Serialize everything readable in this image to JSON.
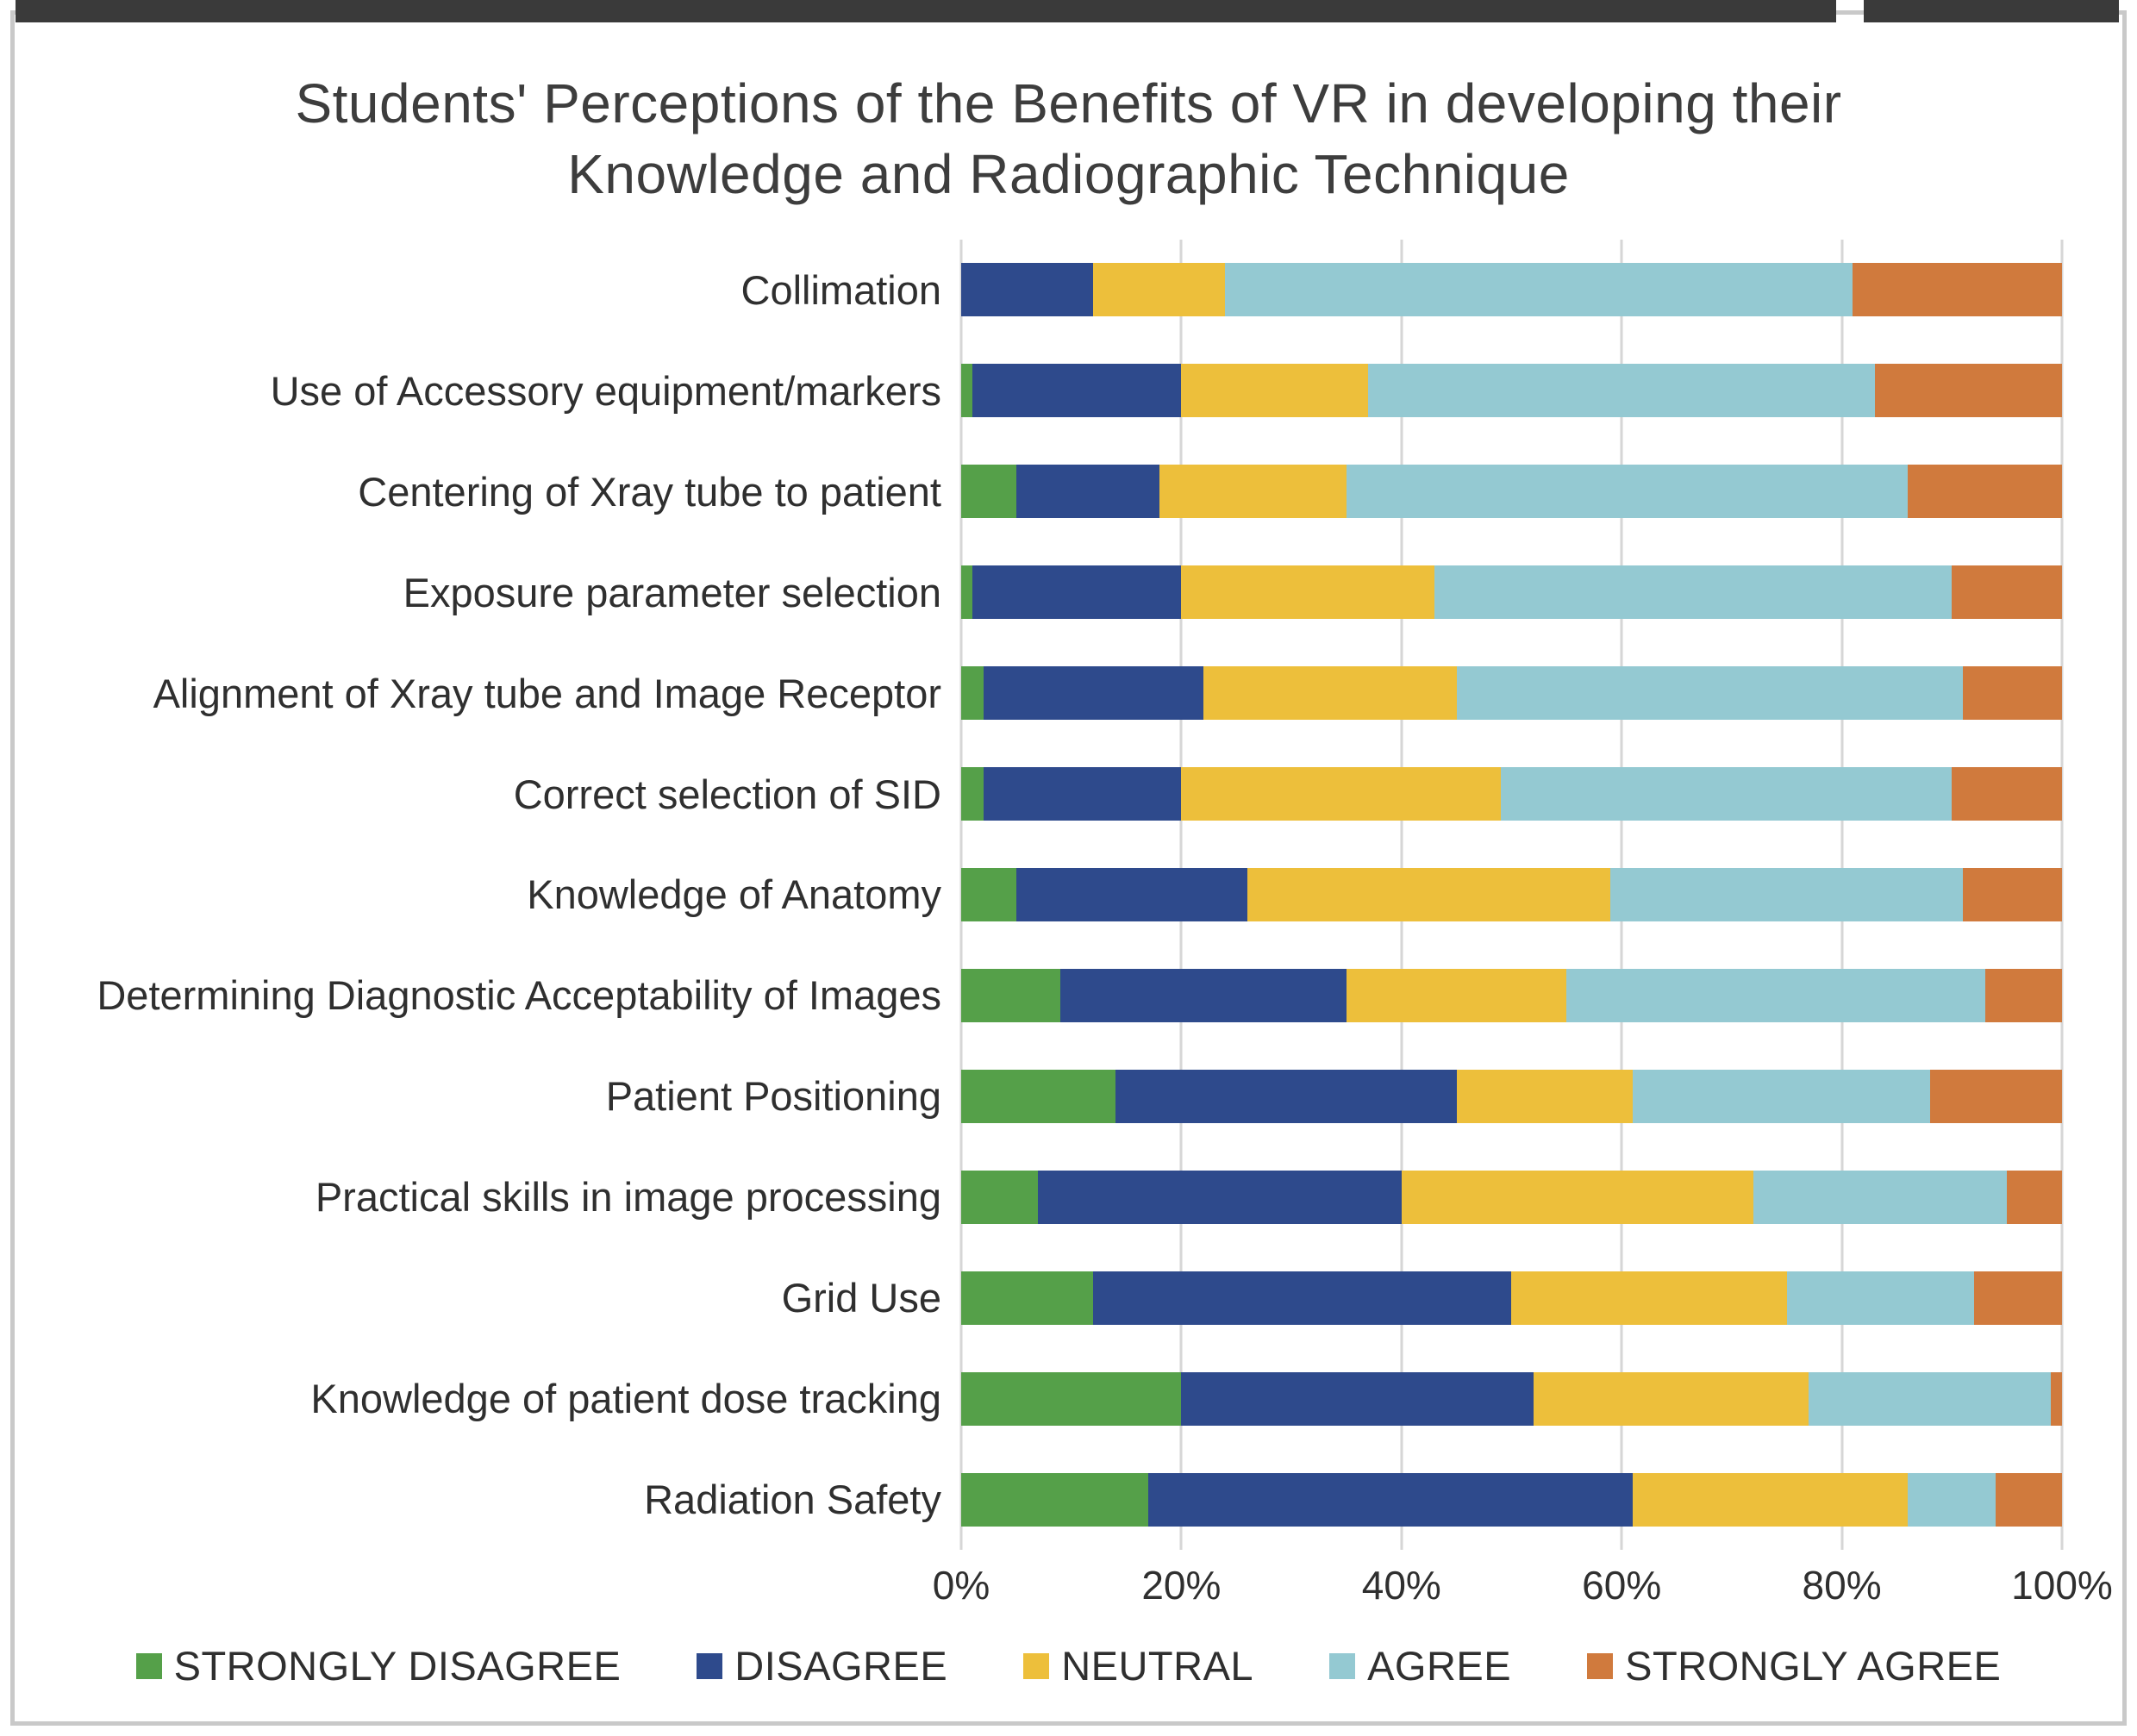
{
  "page": {
    "title_line1": "Students' Perceptions of the Benefits of VR in developing their",
    "title_line2": "Knowledge and Radiographic Technique"
  },
  "chart_data": {
    "type": "bar",
    "orientation": "horizontal",
    "stacked": true,
    "unit": "%",
    "title": "Students' Perceptions of the Benefits of VR in developing their Knowledge and Radiographic Technique",
    "xlabel": "",
    "ylabel": "",
    "xlim": [
      0,
      100
    ],
    "x_ticks": [
      "0%",
      "20%",
      "40%",
      "60%",
      "80%",
      "100%"
    ],
    "grid": true,
    "legend_position": "bottom",
    "categories": [
      "Collimation",
      "Use of Accessory equipment/markers",
      "Centering of Xray tube to patient",
      "Exposure parameter selection",
      "Alignment of Xray tube and Image Receptor",
      "Correct selection of SID",
      "Knowledge of Anatomy",
      "Determining Diagnostic Acceptability of Images",
      "Patient Positioning",
      "Practical skills in image processing",
      "Grid Use",
      "Knowledge of patient dose tracking",
      "Radiation Safety"
    ],
    "series": [
      {
        "name": "STRONGLY DISAGREE",
        "color": "#55a049",
        "values": [
          0,
          1,
          5,
          1,
          2,
          2,
          5,
          9,
          14,
          7,
          12,
          20,
          17
        ]
      },
      {
        "name": "DISAGREE",
        "color": "#2e4a8c",
        "values": [
          12,
          19,
          13,
          19,
          20,
          18,
          21,
          26,
          31,
          33,
          38,
          32,
          44
        ]
      },
      {
        "name": "NEUTRAL",
        "color": "#edbf3b",
        "values": [
          12,
          17,
          17,
          23,
          23,
          29,
          33,
          20,
          16,
          32,
          25,
          25,
          25
        ]
      },
      {
        "name": "AGREE",
        "color": "#94c9d2",
        "values": [
          57,
          46,
          51,
          47,
          46,
          41,
          32,
          38,
          27,
          23,
          17,
          22,
          8
        ]
      },
      {
        "name": "STRONGLY AGREE",
        "color": "#d07a3d",
        "values": [
          19,
          17,
          14,
          10,
          9,
          10,
          9,
          7,
          12,
          5,
          8,
          1,
          6
        ]
      }
    ]
  }
}
